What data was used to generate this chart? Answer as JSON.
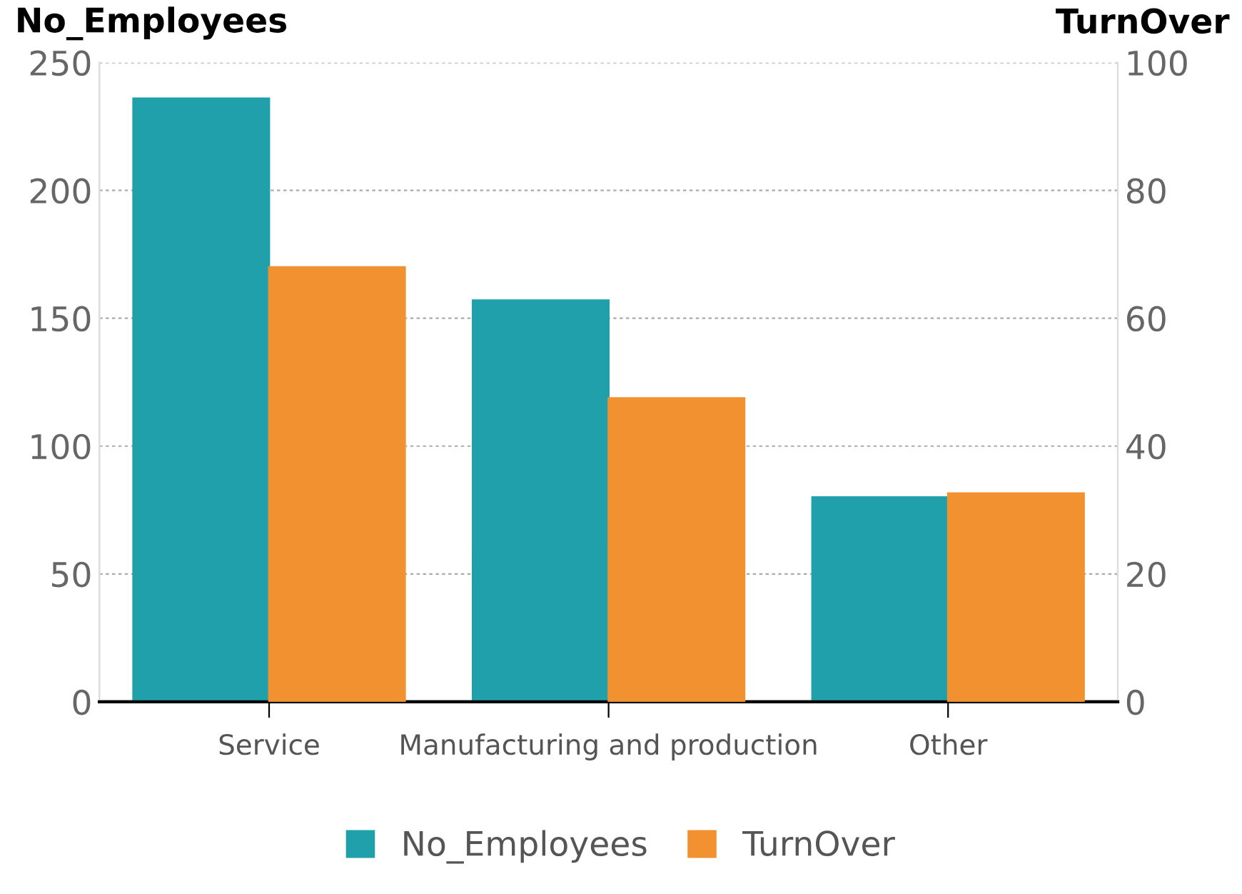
{
  "chart_data": {
    "type": "bar",
    "ylabel": "No_Employees",
    "y2label": "TurnOver",
    "categories": [
      "Service",
      "Manufacturing and production",
      "Other"
    ],
    "series": [
      {
        "name": "No_Employees",
        "color": "#1fa0aa",
        "values": [
          236,
          157,
          80
        ]
      },
      {
        "name": "TurnOver",
        "color": "#f19130",
        "values": [
          68,
          47.5,
          32.6
        ],
        "axis": "y2"
      }
    ],
    "ylim": [
      0,
      250
    ],
    "yticks": [
      0,
      50,
      100,
      150,
      200,
      250
    ],
    "y2lim": [
      0,
      100
    ],
    "y2ticks": [
      0,
      20,
      40,
      60,
      80,
      100
    ],
    "grid": "y",
    "legend": "bottom"
  }
}
